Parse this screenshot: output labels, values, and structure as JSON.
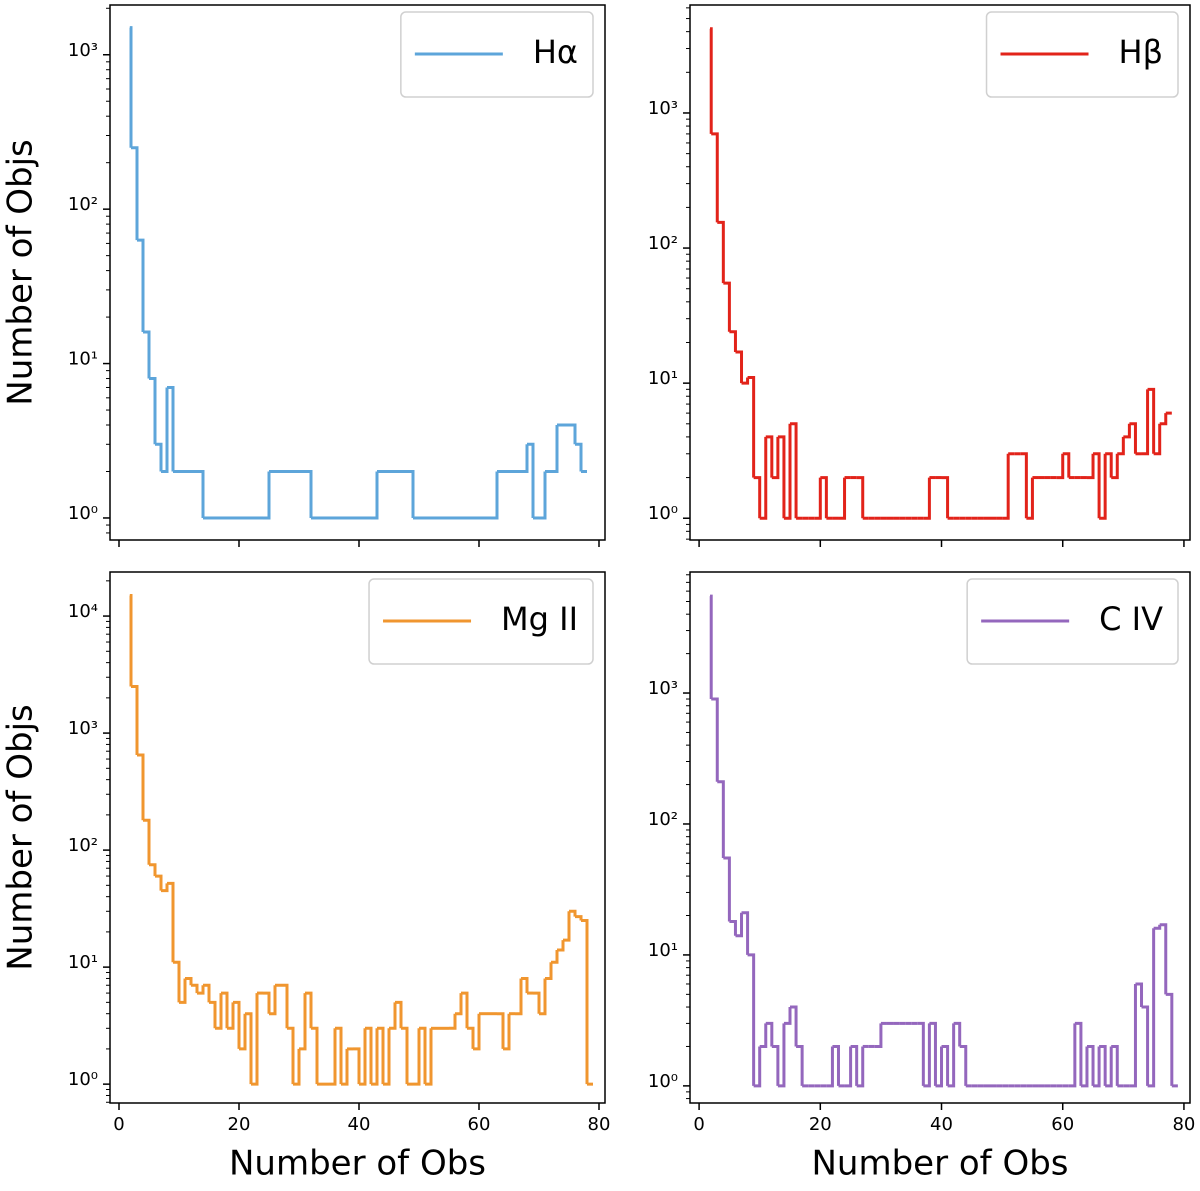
{
  "chart_data": [
    {
      "type": "histogram",
      "ylabel": "Number of Objs",
      "log_y": true,
      "legend": "upper right",
      "show_xtick_labels": false,
      "xlim": [
        -1.5,
        81
      ],
      "ylim": [
        0.72,
        2100
      ],
      "xticks": [
        0,
        20,
        40,
        60,
        80
      ],
      "yticks": [
        {
          "value": 1,
          "label": "10⁰"
        },
        {
          "value": 10,
          "label": "10¹"
        },
        {
          "value": 100,
          "label": "10²"
        },
        {
          "value": 1000,
          "label": "10³"
        }
      ],
      "bins": [
        1.8,
        2,
        3,
        4,
        5,
        6,
        7,
        8,
        9,
        10,
        11,
        12,
        13,
        14,
        15,
        16,
        17,
        18,
        19,
        20,
        21,
        22,
        23,
        24,
        25,
        26,
        27,
        28,
        29,
        30,
        31,
        32,
        33,
        34,
        35,
        36,
        37,
        38,
        39,
        40,
        41,
        42,
        43,
        44,
        45,
        46,
        47,
        48,
        49,
        50,
        51,
        52,
        53,
        54,
        55,
        56,
        57,
        58,
        59,
        60,
        61,
        62,
        63,
        64,
        65,
        66,
        67,
        68,
        69,
        70,
        71,
        72,
        73,
        74,
        75,
        76,
        77,
        78
      ],
      "series": [
        {
          "name": "Hα",
          "color": "#5da5da",
          "values": [
            1500,
            250,
            63,
            16,
            8,
            3,
            2,
            7,
            2,
            2,
            2,
            2,
            2,
            1,
            1,
            1,
            1,
            1,
            1,
            1,
            1,
            1,
            1,
            1,
            2,
            2,
            2,
            2,
            2,
            2,
            2,
            1,
            1,
            1,
            1,
            1,
            1,
            1,
            1,
            1,
            1,
            1,
            2,
            2,
            2,
            2,
            2,
            2,
            1,
            1,
            1,
            1,
            1,
            1,
            1,
            1,
            1,
            1,
            1,
            1,
            1,
            1,
            2,
            2,
            2,
            2,
            2,
            3,
            1,
            1,
            2,
            2,
            4,
            4,
            4,
            3,
            2
          ]
        }
      ]
    },
    {
      "type": "histogram",
      "log_y": true,
      "legend": "upper right",
      "show_xtick_labels": false,
      "xlim": [
        -1.5,
        81
      ],
      "ylim": [
        0.69,
        6300
      ],
      "xticks": [
        0,
        20,
        40,
        60,
        80
      ],
      "yticks": [
        {
          "value": 1,
          "label": "10⁰"
        },
        {
          "value": 10,
          "label": "10¹"
        },
        {
          "value": 100,
          "label": "10²"
        },
        {
          "value": 1000,
          "label": "10³"
        }
      ],
      "bins": [
        1.8,
        2,
        3,
        4,
        5,
        6,
        7,
        8,
        9,
        10,
        11,
        12,
        13,
        14,
        15,
        16,
        17,
        18,
        19,
        20,
        21,
        22,
        23,
        24,
        25,
        26,
        27,
        28,
        29,
        30,
        31,
        32,
        33,
        34,
        35,
        36,
        37,
        38,
        39,
        40,
        41,
        42,
        43,
        44,
        45,
        46,
        47,
        48,
        49,
        50,
        51,
        52,
        53,
        54,
        55,
        56,
        57,
        58,
        59,
        60,
        61,
        62,
        63,
        64,
        65,
        66,
        67,
        68,
        69,
        70,
        71,
        72,
        73,
        74,
        75,
        76,
        77,
        78
      ],
      "series": [
        {
          "name": "Hβ",
          "color": "#e2231a",
          "values": [
            4200,
            700,
            155,
            55,
            24,
            17,
            10,
            11,
            2,
            1,
            4,
            2,
            4,
            1,
            5,
            1,
            1,
            1,
            1,
            2,
            1,
            1,
            1,
            2,
            2,
            2,
            1,
            1,
            1,
            1,
            1,
            1,
            1,
            1,
            1,
            1,
            1,
            2,
            2,
            2,
            1,
            1,
            1,
            1,
            1,
            1,
            1,
            1,
            1,
            1,
            3,
            3,
            3,
            1,
            2,
            2,
            2,
            2,
            2,
            3,
            2,
            2,
            2,
            2,
            3,
            1,
            3,
            2,
            3,
            4,
            5,
            3,
            3,
            9,
            3,
            5,
            6
          ]
        }
      ]
    },
    {
      "type": "histogram",
      "ylabel": "Number of Objs",
      "xlabel": "Number of Obs",
      "log_y": true,
      "legend": "upper right",
      "show_xtick_labels": true,
      "xlim": [
        -1.5,
        81
      ],
      "ylim": [
        0.69,
        23800
      ],
      "xticks": [
        0,
        20,
        40,
        60,
        80
      ],
      "yticks": [
        {
          "value": 1,
          "label": "10⁰"
        },
        {
          "value": 10,
          "label": "10¹"
        },
        {
          "value": 100,
          "label": "10²"
        },
        {
          "value": 1000,
          "label": "10³"
        },
        {
          "value": 10000,
          "label": "10⁴"
        }
      ],
      "bins": [
        1.8,
        2,
        3,
        4,
        5,
        6,
        7,
        8,
        9,
        10,
        11,
        12,
        13,
        14,
        15,
        16,
        17,
        18,
        19,
        20,
        21,
        22,
        23,
        24,
        25,
        26,
        27,
        28,
        29,
        30,
        31,
        32,
        33,
        34,
        35,
        36,
        37,
        38,
        39,
        40,
        41,
        42,
        43,
        44,
        45,
        46,
        47,
        48,
        49,
        50,
        51,
        52,
        53,
        54,
        55,
        56,
        57,
        58,
        59,
        60,
        61,
        62,
        63,
        64,
        65,
        66,
        67,
        68,
        69,
        70,
        71,
        72,
        73,
        74,
        75,
        76,
        77,
        78,
        79
      ],
      "series": [
        {
          "name": "Mg II",
          "color": "#f0962f",
          "values": [
            15000,
            2500,
            650,
            180,
            75,
            60,
            45,
            52,
            11,
            5,
            8,
            7,
            6,
            7,
            5,
            3,
            6,
            3,
            5,
            2,
            4,
            1,
            6,
            6,
            4,
            7,
            7,
            3,
            1,
            2,
            6,
            3,
            1,
            1,
            1,
            3,
            1,
            2,
            2,
            1,
            3,
            1,
            3,
            1,
            3,
            5,
            3,
            1,
            1,
            3,
            1,
            3,
            3,
            3,
            3,
            4,
            6,
            3,
            2,
            4,
            4,
            4,
            4,
            2,
            4,
            4,
            8,
            6,
            6,
            4,
            8,
            11,
            14,
            17,
            30,
            27,
            25,
            1
          ]
        }
      ]
    },
    {
      "type": "histogram",
      "xlabel": "Number of Obs",
      "log_y": true,
      "legend": "upper right",
      "show_xtick_labels": true,
      "xlim": [
        -1.5,
        81
      ],
      "ylim": [
        0.74,
        8400
      ],
      "xticks": [
        0,
        20,
        40,
        60,
        80
      ],
      "yticks": [
        {
          "value": 1,
          "label": "10⁰"
        },
        {
          "value": 10,
          "label": "10¹"
        },
        {
          "value": 100,
          "label": "10²"
        },
        {
          "value": 1000,
          "label": "10³"
        }
      ],
      "bins": [
        1.8,
        2,
        3,
        4,
        5,
        6,
        7,
        8,
        9,
        10,
        11,
        12,
        13,
        14,
        15,
        16,
        17,
        18,
        19,
        20,
        21,
        22,
        23,
        24,
        25,
        26,
        27,
        28,
        29,
        30,
        31,
        32,
        33,
        34,
        35,
        36,
        37,
        38,
        39,
        40,
        41,
        42,
        43,
        44,
        45,
        46,
        47,
        48,
        49,
        50,
        51,
        52,
        53,
        54,
        55,
        56,
        57,
        58,
        59,
        60,
        61,
        62,
        63,
        64,
        65,
        66,
        67,
        68,
        69,
        70,
        71,
        72,
        73,
        74,
        75,
        76,
        77,
        78,
        79
      ],
      "series": [
        {
          "name": "C IV",
          "color": "#9467bd",
          "values": [
            5500,
            900,
            210,
            55,
            18,
            14,
            21,
            10,
            1,
            2,
            3,
            2,
            1,
            3,
            4,
            2,
            1,
            1,
            1,
            1,
            1,
            2,
            1,
            1,
            2,
            1,
            2,
            2,
            2,
            3,
            3,
            3,
            3,
            3,
            3,
            3,
            1,
            3,
            1,
            2,
            1,
            3,
            2,
            1,
            1,
            1,
            1,
            1,
            1,
            1,
            1,
            1,
            1,
            1,
            1,
            1,
            1,
            1,
            1,
            1,
            1,
            3,
            1,
            2,
            1,
            2,
            1,
            2,
            1,
            1,
            1,
            6,
            4,
            1,
            16,
            17,
            5,
            1
          ]
        }
      ]
    }
  ]
}
